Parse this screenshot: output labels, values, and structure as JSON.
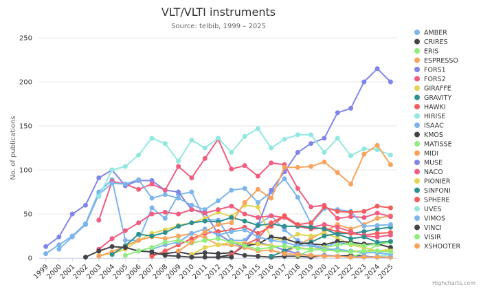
{
  "chart_data": {
    "type": "line",
    "title": "VLT/VLTI instruments",
    "subtitle": "Source: telbib, 1999 – 2025",
    "ylabel": "No. of publications",
    "xlabel": "",
    "ylim": [
      0,
      250
    ],
    "yticks": [
      0,
      50,
      100,
      150,
      200,
      250
    ],
    "x": [
      "1999",
      "2000",
      "2001",
      "2002",
      "2003",
      "2004",
      "2005",
      "2006",
      "2007",
      "2008",
      "2009",
      "2010",
      "2011",
      "2012",
      "2013",
      "2014",
      "2015",
      "2016",
      "2017",
      "2018",
      "2019",
      "2020",
      "2021",
      "2022",
      "2023",
      "2024",
      "2025"
    ],
    "legend_position": "right",
    "credits": "Highcharts.com",
    "series": [
      {
        "name": "AMBER",
        "color": "#7cb5ec",
        "values": [
          5,
          15,
          25,
          39,
          75,
          89,
          20,
          20,
          57,
          45,
          72,
          75,
          44,
          43,
          20,
          20,
          38,
          48,
          32,
          20,
          15,
          12,
          18,
          15,
          12,
          7,
          8
        ]
      },
      {
        "name": "CRIRES",
        "color": "#434348",
        "values": [
          null,
          null,
          null,
          null,
          null,
          null,
          null,
          null,
          4,
          5,
          7,
          4,
          6,
          5,
          6,
          3,
          2,
          1,
          2,
          2,
          1,
          3,
          2,
          3,
          2,
          1,
          1
        ]
      },
      {
        "name": "ERIS",
        "color": "#90ed7d",
        "values": [
          null,
          null,
          null,
          null,
          null,
          null,
          null,
          null,
          null,
          null,
          null,
          null,
          null,
          null,
          null,
          null,
          null,
          null,
          null,
          null,
          null,
          null,
          null,
          1,
          6,
          15,
          18
        ]
      },
      {
        "name": "ESPRESSO",
        "color": "#f7a35c",
        "values": [
          null,
          null,
          null,
          null,
          null,
          null,
          null,
          null,
          null,
          null,
          null,
          null,
          null,
          null,
          null,
          null,
          null,
          null,
          5,
          15,
          22,
          30,
          38,
          33,
          38,
          45,
          48
        ]
      },
      {
        "name": "FORS1",
        "color": "#8085e9",
        "values": [
          13,
          24,
          50,
          60,
          91,
          100,
          82,
          88,
          88,
          77,
          75,
          55,
          52,
          27,
          18,
          12,
          18,
          14,
          9,
          5,
          3,
          3,
          2,
          1,
          2,
          1,
          1
        ]
      },
      {
        "name": "FORS2",
        "color": "#f15c80",
        "values": [
          null,
          null,
          null,
          null,
          43,
          87,
          84,
          78,
          84,
          77,
          104,
          91,
          113,
          135,
          101,
          105,
          93,
          108,
          106,
          79,
          58,
          60,
          45,
          47,
          46,
          51,
          47
        ]
      },
      {
        "name": "GIRAFFE",
        "color": "#e4d354",
        "values": [
          null,
          null,
          null,
          null,
          3,
          5,
          10,
          20,
          28,
          32,
          37,
          40,
          45,
          52,
          47,
          60,
          58,
          22,
          20,
          27,
          25,
          28,
          23,
          15,
          12,
          8,
          10
        ]
      },
      {
        "name": "GRAVITY",
        "color": "#2b908f",
        "values": [
          null,
          null,
          null,
          null,
          null,
          null,
          null,
          null,
          null,
          null,
          null,
          null,
          null,
          null,
          null,
          null,
          null,
          2,
          8,
          15,
          18,
          25,
          28,
          28,
          30,
          33,
          35
        ]
      },
      {
        "name": "HAWKI",
        "color": "#f45b5b",
        "values": [
          null,
          null,
          null,
          null,
          null,
          null,
          null,
          null,
          2,
          8,
          15,
          22,
          28,
          30,
          32,
          35,
          28,
          36,
          48,
          36,
          33,
          34,
          30,
          28,
          26,
          28,
          29
        ]
      },
      {
        "name": "HIRISE",
        "color": "#91e8e1",
        "values": [
          null,
          null,
          null,
          null,
          null,
          null,
          null,
          null,
          null,
          null,
          null,
          null,
          null,
          null,
          null,
          null,
          null,
          null,
          null,
          null,
          null,
          null,
          null,
          null,
          null,
          2,
          4
        ]
      },
      {
        "name": "ISAAC",
        "color": "#7cb5ec",
        "values": [
          null,
          10,
          24,
          38,
          72,
          85,
          84,
          89,
          68,
          72,
          68,
          60,
          55,
          65,
          77,
          79,
          63,
          75,
          90,
          69,
          39,
          56,
          55,
          53,
          36,
          37,
          38
        ]
      },
      {
        "name": "KMOS",
        "color": "#434348",
        "values": [
          null,
          null,
          null,
          null,
          null,
          null,
          null,
          null,
          null,
          null,
          null,
          null,
          null,
          1,
          4,
          14,
          16,
          24,
          22,
          17,
          16,
          15,
          19,
          18,
          16,
          16,
          12
        ]
      },
      {
        "name": "MATISSE",
        "color": "#90ed7d",
        "values": [
          null,
          null,
          null,
          null,
          null,
          null,
          null,
          null,
          null,
          null,
          null,
          null,
          null,
          null,
          null,
          null,
          null,
          null,
          null,
          3,
          9,
          12,
          15,
          16,
          14,
          16,
          18
        ]
      },
      {
        "name": "MIDI",
        "color": "#f7a35c",
        "values": [
          null,
          null,
          null,
          null,
          2,
          7,
          14,
          20,
          24,
          22,
          25,
          28,
          23,
          15,
          15,
          12,
          8,
          9,
          5,
          4,
          3,
          2,
          2,
          1,
          1,
          1,
          1
        ]
      },
      {
        "name": "MUSE",
        "color": "#8085e9",
        "values": [
          null,
          null,
          null,
          null,
          null,
          null,
          null,
          null,
          null,
          null,
          null,
          null,
          null,
          null,
          3,
          17,
          37,
          77,
          98,
          120,
          130,
          136,
          165,
          170,
          200,
          215,
          200
        ]
      },
      {
        "name": "NACO",
        "color": "#f15c80",
        "values": [
          null,
          null,
          null,
          null,
          10,
          22,
          31,
          40,
          50,
          52,
          50,
          55,
          51,
          55,
          59,
          50,
          46,
          48,
          46,
          37,
          35,
          38,
          35,
          30,
          25,
          24,
          26
        ]
      },
      {
        "name": "PIONIER",
        "color": "#e4d354",
        "values": [
          null,
          null,
          null,
          null,
          null,
          null,
          null,
          null,
          null,
          null,
          null,
          4,
          12,
          15,
          18,
          17,
          16,
          14,
          13,
          12,
          10,
          11,
          9,
          8,
          8,
          8,
          8
        ]
      },
      {
        "name": "SINFONI",
        "color": "#2b908f",
        "values": [
          null,
          null,
          null,
          null,
          null,
          4,
          14,
          27,
          25,
          29,
          36,
          40,
          42,
          41,
          46,
          42,
          37,
          39,
          36,
          36,
          35,
          33,
          27,
          22,
          24,
          18,
          19
        ]
      },
      {
        "name": "SPHERE",
        "color": "#f45b5b",
        "values": [
          null,
          null,
          null,
          null,
          null,
          null,
          null,
          null,
          null,
          null,
          null,
          null,
          null,
          null,
          4,
          15,
          22,
          40,
          48,
          38,
          40,
          58,
          53,
          52,
          53,
          59,
          57
        ]
      },
      {
        "name": "UVES",
        "color": "#91e8e1",
        "values": [
          null,
          null,
          null,
          null,
          70,
          100,
          104,
          117,
          136,
          130,
          110,
          134,
          125,
          136,
          120,
          138,
          147,
          125,
          135,
          140,
          140,
          120,
          136,
          116,
          124,
          123,
          117
        ]
      },
      {
        "name": "VIMOS",
        "color": "#7cb5ec",
        "values": [
          null,
          null,
          null,
          null,
          null,
          null,
          null,
          null,
          10,
          15,
          18,
          28,
          33,
          26,
          30,
          32,
          24,
          20,
          18,
          14,
          14,
          10,
          10,
          8,
          6,
          6,
          4
        ]
      },
      {
        "name": "VINCI",
        "color": "#434348",
        "values": [
          null,
          null,
          null,
          1,
          8,
          13,
          12,
          8,
          7,
          3,
          2,
          1,
          1,
          1,
          1,
          null,
          null,
          null,
          null,
          null,
          null,
          null,
          null,
          null,
          null,
          null,
          null
        ]
      },
      {
        "name": "VISIR",
        "color": "#90ed7d",
        "values": [
          null,
          null,
          null,
          null,
          null,
          null,
          3,
          8,
          12,
          18,
          20,
          17,
          20,
          22,
          18,
          14,
          10,
          12,
          14,
          11,
          10,
          9,
          8,
          7,
          8,
          8,
          7
        ]
      },
      {
        "name": "XSHOOTER",
        "color": "#f7a35c",
        "values": [
          null,
          null,
          null,
          null,
          null,
          null,
          null,
          null,
          null,
          null,
          8,
          18,
          30,
          38,
          40,
          63,
          78,
          68,
          103,
          103,
          104,
          109,
          97,
          84,
          118,
          128,
          106
        ]
      }
    ]
  }
}
